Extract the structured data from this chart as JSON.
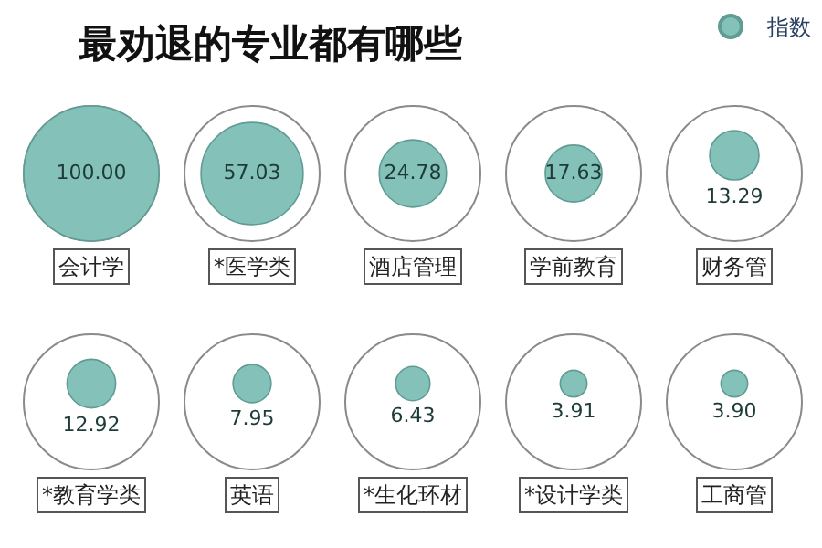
{
  "chart_data": {
    "type": "other",
    "title": "最劝退的专业都有哪些",
    "categories": [
      "会计学",
      "*医学类",
      "酒店管理",
      "学前教育",
      "财务管",
      "*教育学类",
      "英语",
      "*生化环材",
      "*设计学类",
      "工商管"
    ],
    "series": [
      {
        "name": "指数",
        "color": "#84c1b8",
        "values": [
          100.0,
          57.03,
          24.78,
          17.63,
          13.29,
          12.92,
          7.95,
          6.43,
          3.91,
          3.9
        ],
        "value_labels": [
          "100.00",
          "57.03",
          "24.78",
          "17.63",
          "13.29",
          "12.92",
          "7.95",
          "6.43",
          "3.91",
          "3.90"
        ]
      }
    ],
    "legend": "top right"
  }
}
